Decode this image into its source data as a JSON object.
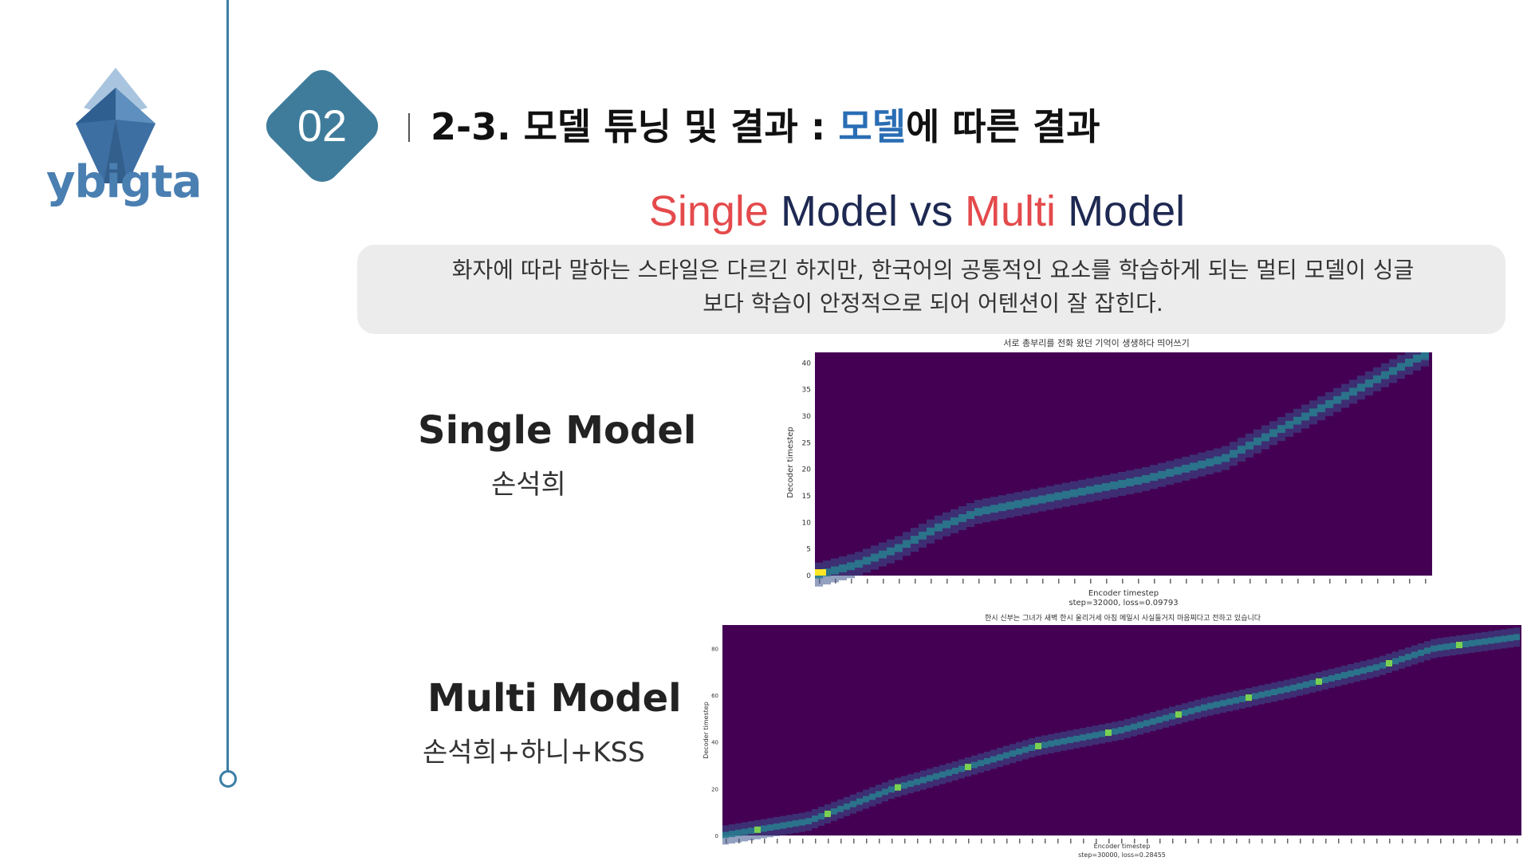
{
  "logo": {
    "text": "ybigta"
  },
  "section": {
    "number": "02"
  },
  "header": {
    "title_prefix": "2-3. 모델 튜닝 및 결과 : ",
    "title_highlight": "모델",
    "title_suffix": "에 따른 결과"
  },
  "subtitle": {
    "part1": "Single",
    "part2": " Model vs ",
    "part3": "Multi",
    "part4": " Model"
  },
  "note": {
    "line1": "화자에 따라 말하는 스타일은 다르긴 하지만, 한국어의 공통적인 요소를 학습하게 되는 멀티 모델이 싱글",
    "line2": "보다 학습이 안정적으로 되어 어텐션이 잘 잡힌다."
  },
  "single": {
    "title": "Single Model",
    "speaker": "손석희"
  },
  "multi": {
    "title": "Multi Model",
    "speaker": "손석희+하니+KSS"
  },
  "colors": {
    "accent": "#3f7c9b",
    "highlight": "#2a6db4",
    "red": "#e44a4c",
    "navy": "#1e2952",
    "plot_bg": "#440154"
  },
  "chart_data": [
    {
      "type": "heatmap",
      "title": "서로 총부리를 전화 왔던 기억이 생생하다 띄어쓰기",
      "xlabel": "Encoder timestep",
      "ylabel": "Decoder timestep",
      "caption": "step=32000, loss=0.09793",
      "ylim": [
        0,
        42
      ],
      "yticks": [
        0,
        5,
        10,
        15,
        20,
        25,
        30,
        35,
        40
      ],
      "xlim": [
        0,
        75
      ],
      "alignment_path": [
        [
          0,
          0
        ],
        [
          5,
          2
        ],
        [
          10,
          5
        ],
        [
          15,
          9
        ],
        [
          20,
          12
        ],
        [
          30,
          15
        ],
        [
          40,
          18
        ],
        [
          50,
          22
        ],
        [
          60,
          30
        ],
        [
          70,
          38
        ],
        [
          75,
          42
        ]
      ]
    },
    {
      "type": "heatmap",
      "title": "한시 신부는 그녀가 새벽 한시 울리거세 아침 메일시 사실들거지 마음찌다고 전하고 있습니다",
      "xlabel": "Encoder timestep",
      "ylabel": "Decoder timestep",
      "caption": "step=30000, loss=0.28455",
      "ylim": [
        0,
        90
      ],
      "yticks": [
        0,
        20,
        40,
        60,
        80
      ],
      "xlim": [
        0,
        140
      ],
      "alignment_path": [
        [
          0,
          0
        ],
        [
          15,
          6
        ],
        [
          30,
          20
        ],
        [
          40,
          27
        ],
        [
          55,
          38
        ],
        [
          70,
          45
        ],
        [
          85,
          55
        ],
        [
          100,
          63
        ],
        [
          115,
          72
        ],
        [
          125,
          80
        ],
        [
          140,
          85
        ]
      ]
    }
  ]
}
